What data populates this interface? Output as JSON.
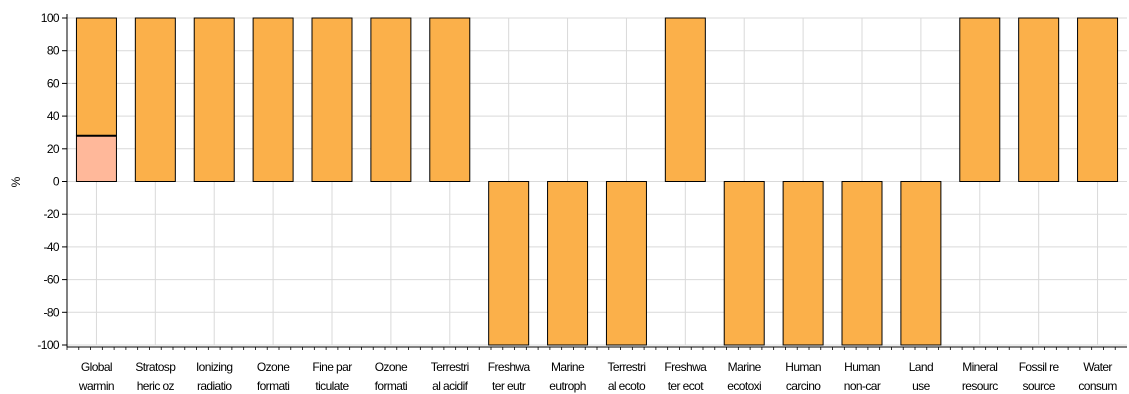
{
  "chart_data": {
    "type": "bar",
    "ylabel": "%",
    "ylim": [
      -100,
      100
    ],
    "yticks": [
      100,
      80,
      60,
      40,
      20,
      0,
      -20,
      -40,
      -60,
      -80,
      -100
    ],
    "grid": true,
    "colors": {
      "bar": "#FBB04A",
      "stack_bottom": "#FFB89A",
      "outline": "#000000",
      "grid": "#D9D9D9"
    },
    "categories": [
      [
        "Global",
        "warmin"
      ],
      [
        "Stratosp",
        "heric oz"
      ],
      [
        "Ionizing",
        "radiatio"
      ],
      [
        "Ozone",
        "formati"
      ],
      [
        "Fine par",
        "ticulate"
      ],
      [
        "Ozone",
        "formati"
      ],
      [
        "Terrestri",
        "al acidif"
      ],
      [
        "Freshwa",
        "ter eutr"
      ],
      [
        "Marine",
        "eutroph"
      ],
      [
        "Terrestri",
        "al ecoto"
      ],
      [
        "Freshwa",
        "ter ecot"
      ],
      [
        "Marine",
        "ecotoxi"
      ],
      [
        "Human",
        "carcino"
      ],
      [
        "Human",
        "non-car"
      ],
      [
        "Land",
        "use"
      ],
      [
        "Mineral",
        "resourc"
      ],
      [
        "Fossil re",
        "source"
      ],
      [
        "Water",
        "consum"
      ]
    ],
    "series": [
      {
        "values": [
          28,
          0,
          0,
          0,
          0,
          0,
          0,
          0,
          0,
          0,
          0,
          0,
          0,
          0,
          0,
          0,
          0,
          0
        ]
      },
      {
        "values": [
          72,
          100,
          100,
          100,
          100,
          100,
          100,
          -100,
          -100,
          -100,
          100,
          -100,
          -100,
          -100,
          -100,
          100,
          100,
          100
        ]
      }
    ]
  }
}
